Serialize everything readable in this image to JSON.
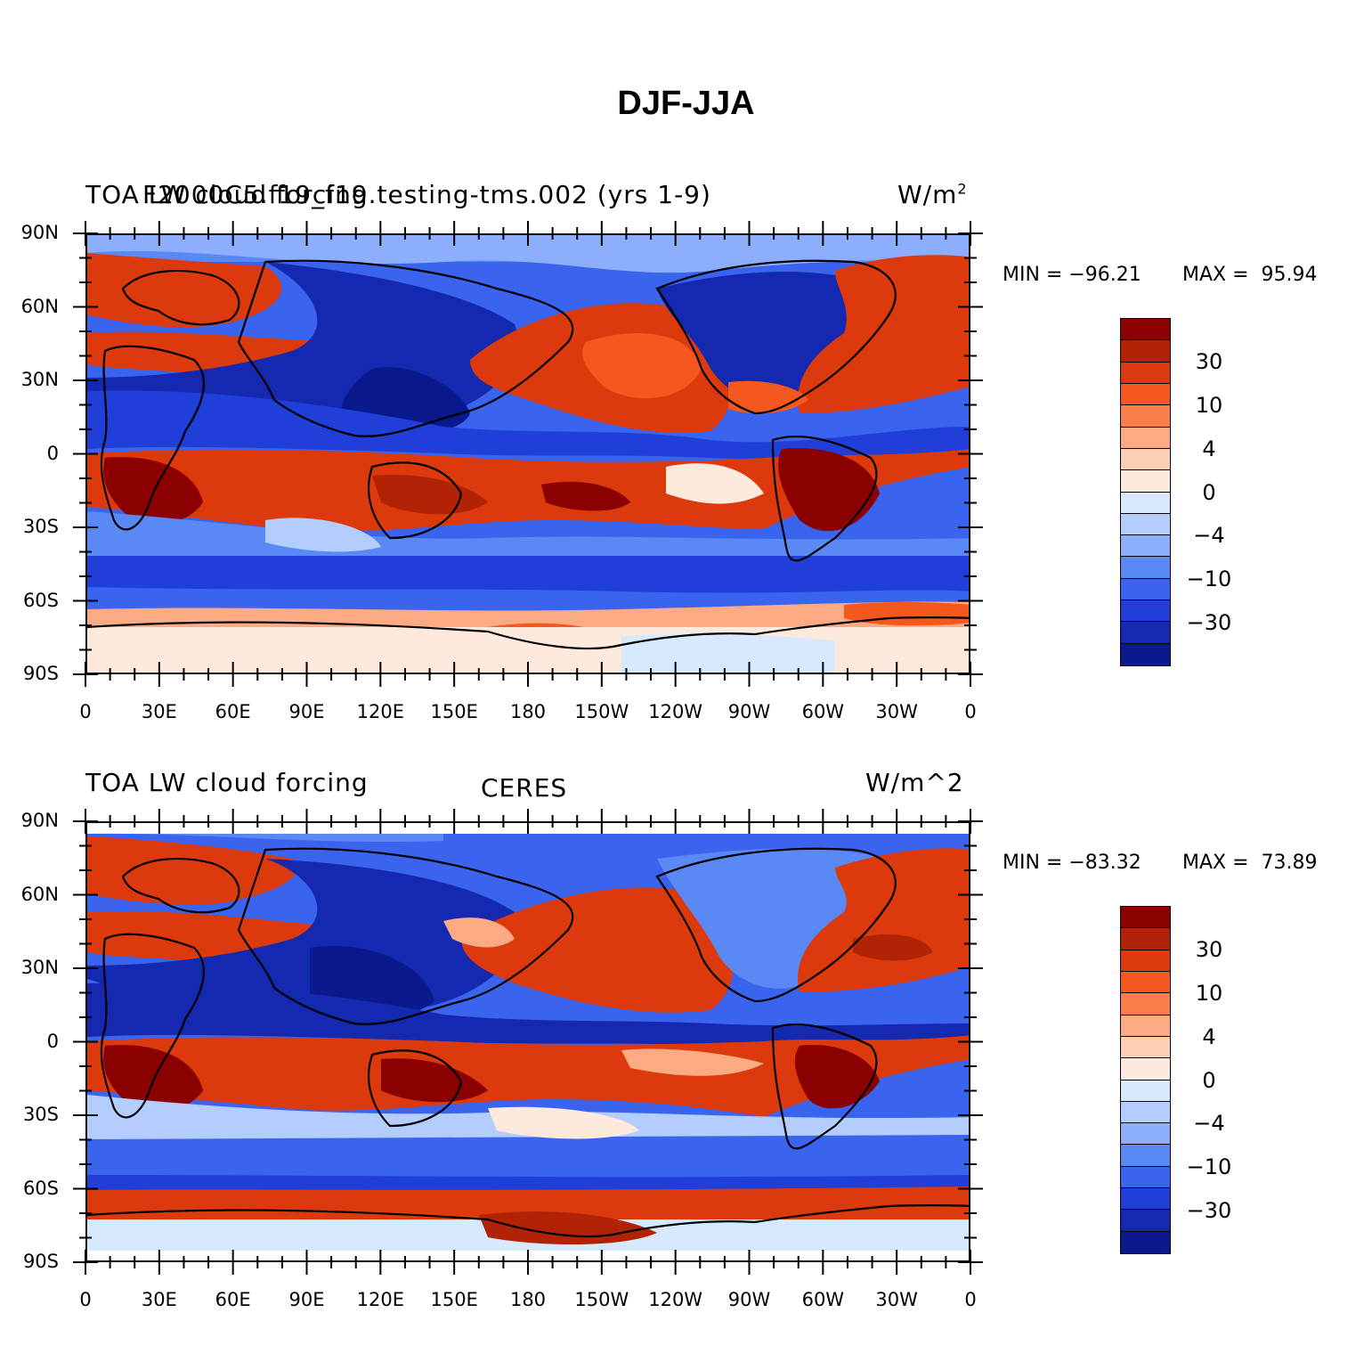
{
  "figure_title": "DJF-JJA",
  "panels": [
    {
      "left_label": "TOA LW cloud forcing",
      "center_label": "F2000C5.f19_f19.testing-tms.002 (yrs 1-9)",
      "units": "W/m",
      "units_sup": "2",
      "min_label": "MIN = −96.21",
      "max_label": "MAX =  95.94"
    },
    {
      "left_label": "TOA LW cloud forcing",
      "center_label": "CERES",
      "units": "W/m^2",
      "units_sup": "",
      "min_label": "MIN = −83.32",
      "max_label": "MAX =  73.89"
    }
  ],
  "lat_ticks": [
    "90N",
    "60N",
    "30N",
    "0",
    "30S",
    "60S",
    "90S"
  ],
  "lon_ticks": [
    "0",
    "30E",
    "60E",
    "90E",
    "120E",
    "150E",
    "180",
    "150W",
    "120W",
    "90W",
    "60W",
    "30W",
    "0"
  ],
  "colorbar": {
    "colors": [
      "#8b0000",
      "#b22204",
      "#dc3a0c",
      "#f4581e",
      "#fa7e4a",
      "#fcaa84",
      "#fdd0b6",
      "#feeadc",
      "#d7e9ff",
      "#b2cdfe",
      "#8caefc",
      "#5a88f5",
      "#3a64ee",
      "#1f3fd8",
      "#1428b0",
      "#0a1a8c"
    ],
    "labels": [
      "30",
      "10",
      "4",
      "0",
      "−4",
      "−10",
      "−30"
    ]
  }
}
